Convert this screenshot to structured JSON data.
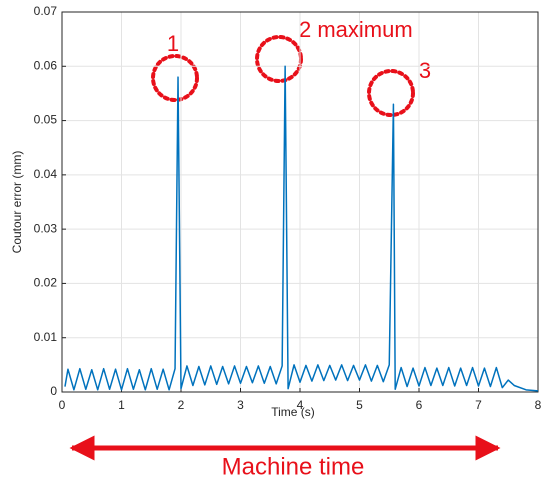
{
  "chart_data": {
    "type": "line",
    "x_label": "Time (s)",
    "y_label": "Coutour error (mm)",
    "annotations": [
      "1",
      "2 maximum",
      "3",
      "Machine time"
    ],
    "color": "#0072bd",
    "grid": true,
    "xlim": [
      0,
      8
    ],
    "xticks": [
      0,
      1,
      2,
      3,
      4,
      5,
      6,
      7,
      8
    ],
    "ylim": [
      0,
      0.07
    ],
    "yticks": [
      0,
      0.01,
      0.02,
      0.03,
      0.04,
      0.05,
      0.06,
      0.07
    ],
    "x": [
      0.05,
      0.1,
      0.2,
      0.3,
      0.4,
      0.5,
      0.6,
      0.7,
      0.8,
      0.9,
      1.0,
      1.1,
      1.2,
      1.3,
      1.4,
      1.5,
      1.6,
      1.7,
      1.8,
      1.9,
      1.95,
      2.0,
      2.1,
      2.2,
      2.3,
      2.4,
      2.5,
      2.6,
      2.7,
      2.8,
      2.9,
      3.0,
      3.1,
      3.2,
      3.3,
      3.4,
      3.5,
      3.6,
      3.7,
      3.75,
      3.8,
      3.9,
      4.0,
      4.1,
      4.2,
      4.3,
      4.4,
      4.5,
      4.6,
      4.7,
      4.8,
      4.9,
      5.0,
      5.1,
      5.2,
      5.3,
      5.4,
      5.5,
      5.57,
      5.6,
      5.7,
      5.8,
      5.9,
      6.0,
      6.1,
      6.2,
      6.3,
      6.4,
      6.5,
      6.6,
      6.7,
      6.8,
      6.9,
      7.0,
      7.1,
      7.2,
      7.3,
      7.4,
      7.5,
      7.6,
      7.8,
      8.0
    ],
    "values": [
      0.001,
      0.0042,
      0.0004,
      0.0043,
      0.0005,
      0.0041,
      0.0004,
      0.0043,
      0.0005,
      0.0042,
      0.0004,
      0.0043,
      0.0005,
      0.0041,
      0.0004,
      0.0043,
      0.0005,
      0.0042,
      0.0004,
      0.0043,
      0.058,
      0.0006,
      0.0048,
      0.0012,
      0.0047,
      0.0013,
      0.0048,
      0.0014,
      0.0047,
      0.0015,
      0.0048,
      0.0016,
      0.0047,
      0.0017,
      0.0048,
      0.0016,
      0.0047,
      0.0015,
      0.0048,
      0.06,
      0.0006,
      0.005,
      0.0018,
      0.0049,
      0.002,
      0.005,
      0.0021,
      0.0049,
      0.0022,
      0.005,
      0.0021,
      0.0049,
      0.0022,
      0.005,
      0.002,
      0.0049,
      0.0019,
      0.005,
      0.053,
      0.0005,
      0.0045,
      0.001,
      0.0044,
      0.0011,
      0.0045,
      0.0012,
      0.0044,
      0.0012,
      0.0045,
      0.0011,
      0.0044,
      0.0012,
      0.0045,
      0.0011,
      0.0044,
      0.001,
      0.0045,
      0.0008,
      0.0022,
      0.0012,
      0.0004,
      0.0002
    ]
  }
}
